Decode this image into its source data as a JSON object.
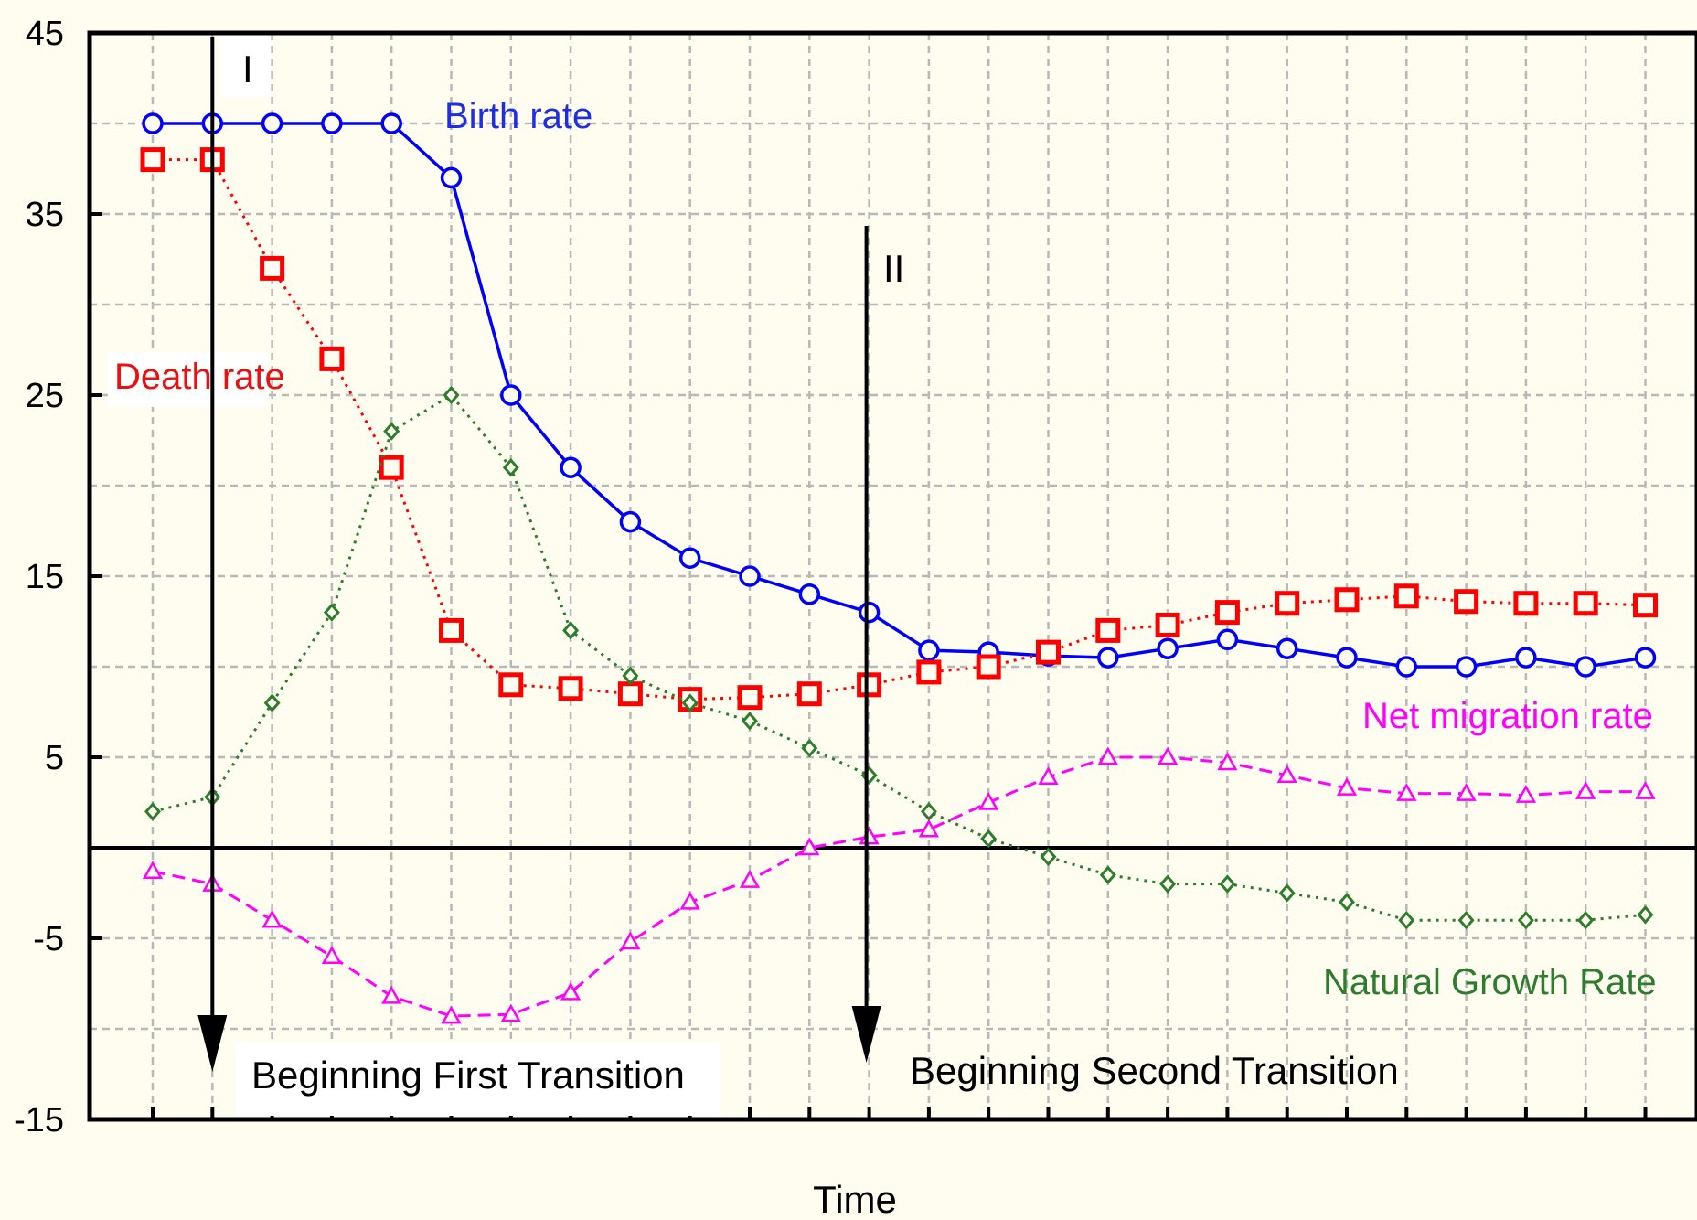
{
  "chart_data": {
    "type": "line",
    "title": "",
    "xlabel": "Time",
    "ylabel": "",
    "ylim": [
      -15,
      45
    ],
    "yticks": [
      -15,
      -5,
      5,
      15,
      25,
      35,
      45
    ],
    "grid": true,
    "x": [
      1,
      2,
      3,
      4,
      5,
      6,
      7,
      8,
      9,
      10,
      11,
      12,
      13,
      14,
      15,
      16,
      17,
      18,
      19,
      20,
      21,
      22,
      23,
      24,
      25,
      26
    ],
    "series": [
      {
        "name": "Birth rate",
        "color": "#0000ff",
        "marker": "circle",
        "line": "solid",
        "values": [
          40,
          40,
          40,
          40,
          40,
          37,
          25,
          21,
          18,
          16,
          15,
          14,
          13,
          10.9,
          10.8,
          10.6,
          10.5,
          11,
          11.5,
          11,
          10.5,
          10,
          10,
          10.5,
          10,
          10.5
        ]
      },
      {
        "name": "Death rate",
        "color": "#ff0000",
        "marker": "square",
        "line": "dotted",
        "values": [
          38,
          38,
          32,
          27,
          21,
          12,
          9,
          8.8,
          8.5,
          8.2,
          8.3,
          8.5,
          9,
          9.7,
          10,
          10.8,
          12,
          12.3,
          13,
          13.5,
          13.7,
          13.9,
          13.6,
          13.5,
          13.5,
          13.4
        ]
      },
      {
        "name": "Natural Growth Rate",
        "color": "#2e7d2e",
        "marker": "diamond",
        "line": "dotted",
        "values": [
          2,
          2.8,
          8,
          13,
          23,
          25,
          21,
          12,
          9.5,
          8,
          7,
          5.5,
          4,
          2,
          0.5,
          -0.5,
          -1.5,
          -2,
          -2,
          -2.5,
          -3,
          -4,
          -4,
          -4,
          -4,
          -3.7
        ]
      },
      {
        "name": "Net migration rate",
        "color": "#ff00ff",
        "marker": "triangle",
        "line": "dashed",
        "values": [
          -1.3,
          -2,
          -4,
          -6,
          -8.2,
          -9.3,
          -9.2,
          -8,
          -5.2,
          -3,
          -1.8,
          0,
          0.6,
          1,
          2.5,
          3.9,
          5,
          5,
          4.7,
          4,
          3.3,
          3,
          3,
          2.9,
          3.1,
          3.1
        ]
      }
    ],
    "annotations": {
      "marker_one": {
        "label": "I",
        "x": 2
      },
      "marker_two": {
        "label": "II",
        "x": 13
      },
      "first_transition": "Beginning First Transition",
      "second_transition": "Beginning Second Transition"
    }
  }
}
